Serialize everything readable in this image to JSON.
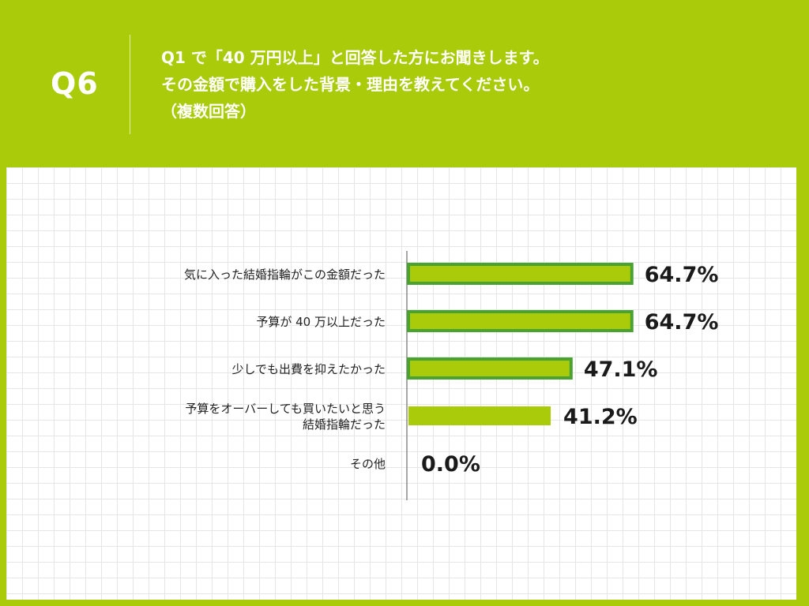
{
  "header": {
    "qnum": "Q6",
    "question_lines": [
      "Q1 で「40 万円以上」と回答した方にお聞きします。",
      "その金額で購入をした背景・理由を教えてください。",
      "（複数回答）"
    ]
  },
  "colors": {
    "background": "#a9cb0a",
    "bar_fill": "#a9cb0a",
    "bar_outline_highlight": "#4aa233",
    "axis": "#8a8a8a"
  },
  "chart_data": {
    "type": "bar",
    "orientation": "horizontal",
    "categories": [
      [
        "気に入った結婚指輪がこの金額だった"
      ],
      [
        "予算が 40 万以上だった"
      ],
      [
        "少しでも出費を抑えたかった"
      ],
      [
        "予算をオーバーしても買いたいと思う",
        "結婚指輪だった"
      ],
      [
        "その他"
      ]
    ],
    "values": [
      64.7,
      64.7,
      47.1,
      41.2,
      0.0
    ],
    "value_labels": [
      "64.7%",
      "64.7%",
      "47.1%",
      "41.2%",
      "0.0%"
    ],
    "highlighted": [
      true,
      true,
      true,
      false,
      false
    ],
    "xlim": [
      0,
      100
    ],
    "grid": false,
    "legend": "none"
  }
}
